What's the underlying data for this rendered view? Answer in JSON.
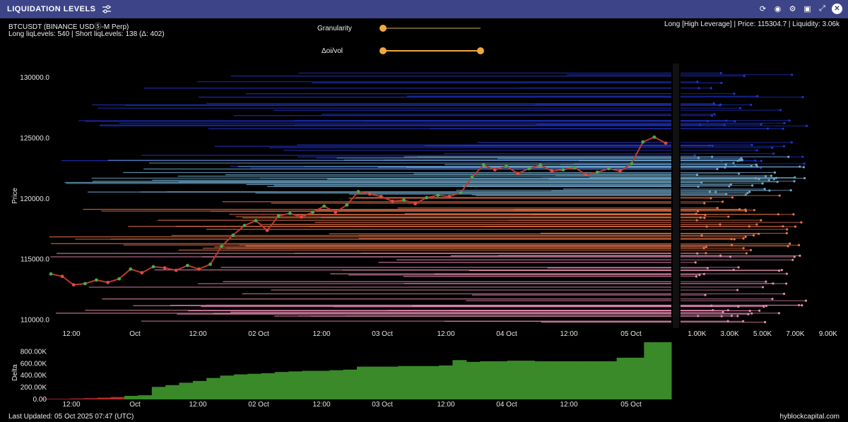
{
  "window": {
    "title": "LIQUIDATION LEVELS"
  },
  "info": {
    "symbol": "BTCUSDT (BINANCE USDⓈ-M Perp)",
    "levels": "Long liqLevels: 540 | Short liqLevels: 138 (Δ: 402)",
    "right": "Long [High Leverage] | Price: 115304.7 | Liquidity: 3.06k"
  },
  "controls": {
    "granularity_label": "Granularity",
    "granularity_value": 0.0,
    "oivol_label": "Δoi/vol",
    "oivol_range": [
      0.0,
      1.0
    ]
  },
  "footer": {
    "updated": "Last Updated: 05 Oct 2025 07:47 (UTC)",
    "brand": "hyblockcapital.com"
  },
  "colors": {
    "bg": "#000000",
    "titlebar": "#3d4488",
    "accent": "#f0a840",
    "delta": "#3a8a2a"
  },
  "chart_data": [
    {
      "type": "line",
      "ylabel": "Price",
      "ylim": [
        109500,
        131000
      ],
      "y_ticks": [
        "130000.0",
        "125000.0",
        "120000.0",
        "115000.0",
        "110000.0"
      ],
      "x_ticks": [
        "12:00",
        "Oct",
        "12:00",
        "02 Oct",
        "12:00",
        "03 Oct",
        "12:00",
        "04 Oct",
        "12:00",
        "05 Oct"
      ],
      "series": [
        {
          "values": [
            113800,
            113600,
            112900,
            113000,
            113300,
            113100,
            113400,
            114200,
            113900,
            114400,
            114300,
            114100,
            114500,
            114200,
            114600,
            116100,
            117000,
            117800,
            118200,
            117400,
            118600,
            118800,
            118500,
            118900,
            119400,
            118900,
            119500,
            120600,
            120400,
            120200,
            119800,
            119900,
            119600,
            120100,
            120300,
            120200,
            120500,
            121800,
            122800,
            122400,
            122700,
            122100,
            122500,
            122800,
            122300,
            122400,
            122600,
            122000,
            122200,
            122500,
            122300,
            122900,
            124700,
            125100,
            124600
          ]
        }
      ],
      "liquidation_bands": [
        {
          "name": "short-high",
          "color": "#2233cc",
          "from": 122500,
          "to": 130500
        },
        {
          "name": "short-mid",
          "color": "#6fa7c8",
          "from": 120300,
          "to": 123500
        },
        {
          "name": "long-orange",
          "color": "#e8754a",
          "from": 115500,
          "to": 120300
        },
        {
          "name": "long-pink",
          "color": "#e58ab0",
          "from": 109800,
          "to": 115500
        }
      ]
    },
    {
      "type": "bar",
      "ylabel": "",
      "xlabel": "",
      "ylim": [
        0,
        900000
      ],
      "y_ticks": [
        "800.00K",
        "600.00K",
        "400.00K",
        "200.00K",
        "0.00"
      ],
      "values": [
        10000,
        10000,
        15000,
        20000,
        30000,
        40000,
        60000,
        70000,
        210000,
        240000,
        280000,
        310000,
        360000,
        400000,
        420000,
        430000,
        440000,
        460000,
        470000,
        480000,
        480000,
        490000,
        500000,
        550000,
        550000,
        550000,
        560000,
        560000,
        560000,
        570000,
        660000,
        630000,
        640000,
        640000,
        650000,
        650000,
        640000,
        640000,
        640000,
        640000,
        640000,
        640000,
        700000,
        700000,
        960000,
        960000
      ]
    },
    {
      "type": "bar",
      "x_ticks": [
        "1.00K",
        "3.00K",
        "5.00K",
        "7.00K",
        "9.00K"
      ],
      "xlim": [
        0,
        10000
      ]
    }
  ]
}
